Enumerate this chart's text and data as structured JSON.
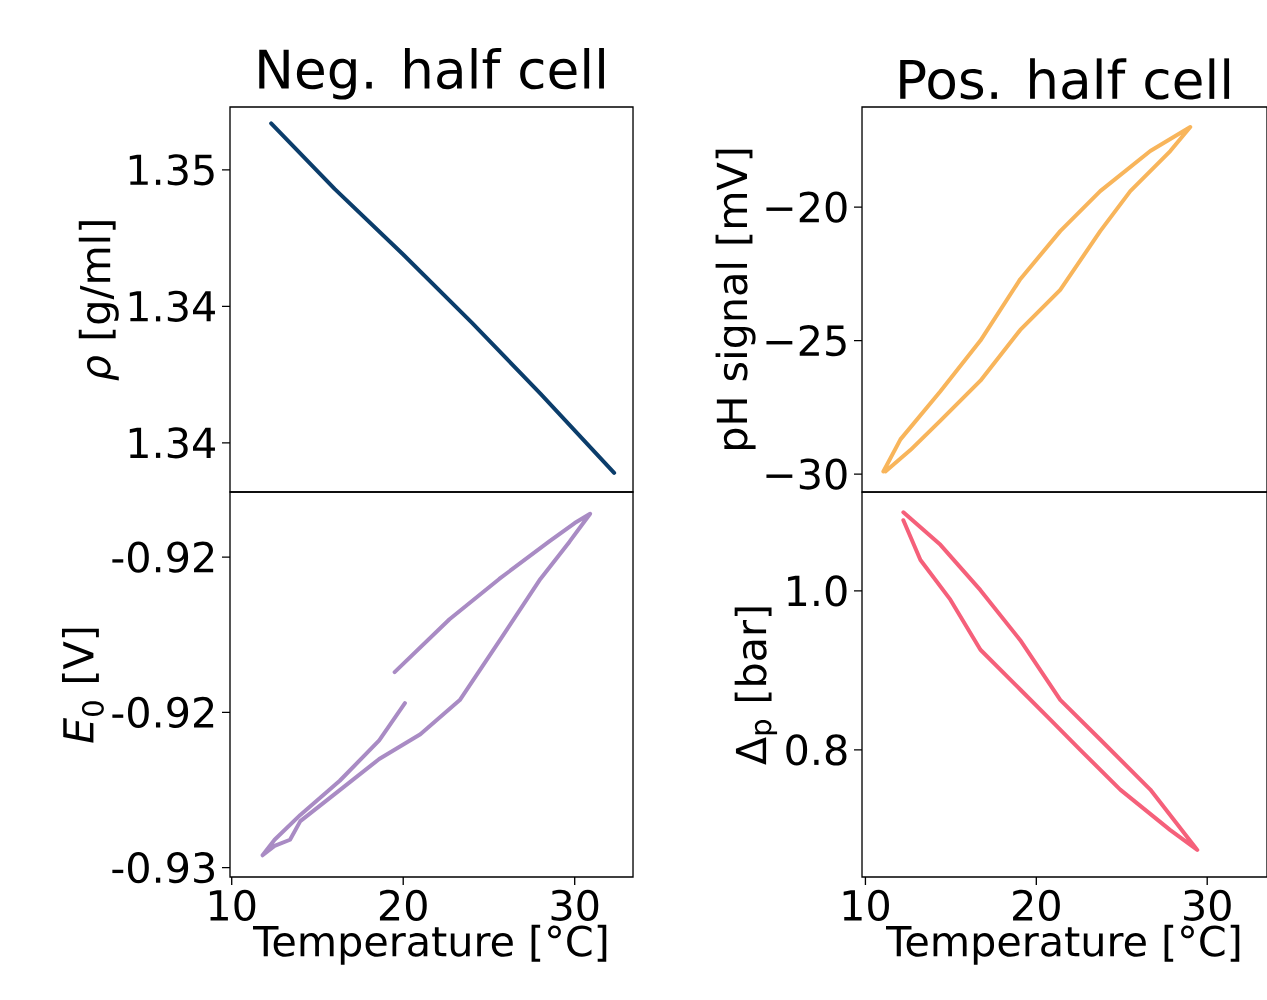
{
  "chart_data": [
    {
      "type": "line",
      "title": "Neg. half cell",
      "ylabel": "*ρ* [g/ml]",
      "tick_labels": "y",
      "xlim": [
        9.9,
        33.4
      ],
      "ylim": [
        1.3382,
        1.3523
      ],
      "yticks": [
        {
          "value": 1.35,
          "label": "1.35"
        },
        {
          "value": 1.345,
          "label": "1.34"
        },
        {
          "value": 1.34,
          "label": "1.34"
        }
      ],
      "series": [
        {
          "color": "#0b3d6b",
          "x": [
            12.3,
            16.0,
            20.0,
            24.0,
            28.0,
            32.3
          ],
          "values": [
            1.3517,
            1.3493,
            1.3469,
            1.3444,
            1.3418,
            1.3389
          ]
        }
      ]
    },
    {
      "type": "line",
      "title": "Pos. half cell",
      "ylabel": "pH signal [mV]",
      "tick_labels": "y",
      "xlim": [
        9.8,
        33.5
      ],
      "ylim": [
        -30.67,
        -16.25
      ],
      "yticks": [
        {
          "value": -20,
          "label": "−20"
        },
        {
          "value": -25,
          "label": "−25"
        },
        {
          "value": -30,
          "label": "−30"
        }
      ],
      "series": [
        {
          "color": "#f8b55b",
          "x": [
            11.05,
            12.05,
            14.39,
            16.73,
            19.06,
            21.4,
            23.74,
            26.67,
            29.01,
            27.84,
            25.5,
            23.74,
            21.4,
            19.06,
            16.73,
            14.39,
            12.63,
            11.17
          ],
          "values": [
            -29.9,
            -28.7,
            -26.9,
            -25.0,
            -22.7,
            -20.9,
            -19.4,
            -17.9,
            -17.0,
            -17.9,
            -19.4,
            -20.9,
            -23.1,
            -24.6,
            -26.5,
            -28.0,
            -29.1,
            -29.9
          ]
        }
      ]
    },
    {
      "type": "line",
      "xlabel": "Temperature [°C]",
      "ylabel": "*E*$_{0}$ [V]",
      "xlim": [
        9.9,
        33.4
      ],
      "ylim": [
        -0.9303,
        -0.9179
      ],
      "xticks": [
        10,
        20,
        30
      ],
      "yticks": [
        {
          "value": -0.92,
          "label": "-0.92"
        },
        {
          "value": -0.925,
          "label": "-0.92"
        },
        {
          "value": -0.93,
          "label": "-0.93"
        }
      ],
      "series": [
        {
          "color": "#a98bc4",
          "x": [
            19.5,
            22.7,
            25.6,
            28.5,
            30.0,
            30.9,
            29.7,
            28.0,
            25.6,
            23.3,
            21.0,
            18.6,
            16.3,
            14.0,
            13.4,
            12.5,
            11.8,
            12.5,
            14.0,
            16.3,
            18.6,
            20.1
          ],
          "values": [
            -0.9237,
            -0.922,
            -0.9207,
            -0.9195,
            -0.9189,
            -0.9186,
            -0.9195,
            -0.9207,
            -0.9227,
            -0.9246,
            -0.9257,
            -0.9265,
            -0.9275,
            -0.9285,
            -0.9291,
            -0.9293,
            -0.9296,
            -0.9291,
            -0.9283,
            -0.9272,
            -0.9259,
            -0.9247
          ]
        }
      ]
    },
    {
      "type": "line",
      "xlabel": "Temperature [°C]",
      "ylabel": "Δ$_{p}$ [bar]",
      "xlim": [
        9.8,
        33.5
      ],
      "ylim": [
        0.64,
        1.1245
      ],
      "xticks": [
        10,
        20,
        30
      ],
      "yticks": [
        {
          "value": 1.0,
          "label": "1.0"
        },
        {
          "value": 0.8,
          "label": "0.8"
        }
      ],
      "series": [
        {
          "color": "#f5607a",
          "x": [
            12.22,
            14.39,
            16.73,
            19.06,
            21.4,
            23.74,
            26.67,
            29.42,
            27.84,
            24.91,
            22.57,
            20.82,
            19.06,
            16.73,
            14.97,
            13.22,
            12.22
          ],
          "values": [
            1.099,
            1.058,
            1.001,
            0.938,
            0.863,
            0.813,
            0.75,
            0.674,
            0.699,
            0.75,
            0.8,
            0.838,
            0.876,
            0.926,
            0.989,
            1.039,
            1.089
          ]
        }
      ]
    }
  ]
}
